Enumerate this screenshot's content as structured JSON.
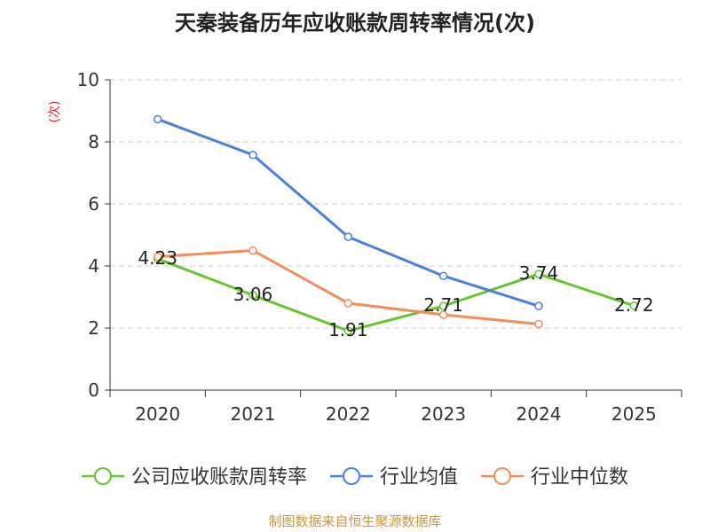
{
  "chart_data": {
    "type": "line",
    "title": "天秦装备历年应收账款周转率情况(次)",
    "ylabel": "(次)",
    "xlabel": "",
    "categories": [
      "2020",
      "2021",
      "2022",
      "2023",
      "2024",
      "2025"
    ],
    "ylim": [
      0,
      10
    ],
    "yticks": [
      "0",
      "2",
      "4",
      "6",
      "8",
      "10"
    ],
    "grid": "horizontal-dashed",
    "legend_position": "bottom",
    "series": [
      {
        "name": "公司应收账款周转率",
        "color": "#66c42f",
        "values": [
          4.23,
          3.06,
          1.91,
          2.71,
          3.74,
          2.72
        ],
        "labels": [
          "4.23",
          "3.06",
          "1.91",
          "2.71",
          "3.74",
          "2.72"
        ]
      },
      {
        "name": "行业均值",
        "color": "#4a7fdc",
        "values": [
          8.73,
          7.58,
          4.94,
          3.68,
          2.71,
          null
        ]
      },
      {
        "name": "行业中位数",
        "color": "#f28d5a",
        "values": [
          4.3,
          4.5,
          2.8,
          2.43,
          2.13,
          null
        ]
      }
    ]
  },
  "source": {
    "text": "制图数据来自恒生聚源数据库",
    "color": "#c8963c"
  },
  "colors": {
    "ylabel": "#e02020",
    "axis": "#333333",
    "grid": "#cccccc"
  }
}
